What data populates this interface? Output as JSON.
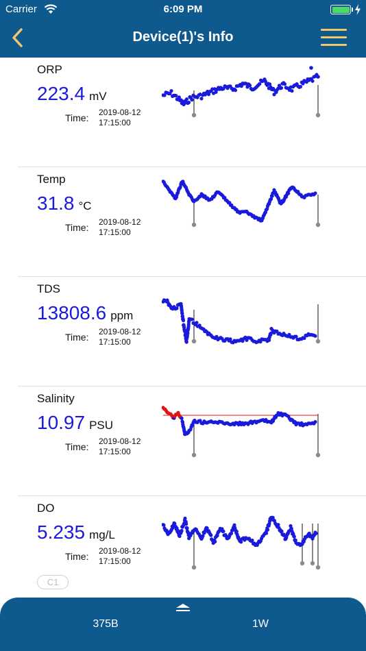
{
  "status": {
    "carrier": "Carrier",
    "time": "6:09 PM"
  },
  "nav": {
    "title": "Device(1)'s Info",
    "back_icon": "chevron-left-icon",
    "menu_icon": "hamburger-menu-icon"
  },
  "readings": [
    {
      "label": "ORP",
      "value": "223.4",
      "unit": "mV",
      "time_label": "Time:",
      "date": "2019-08-12",
      "clock": "17:15:00"
    },
    {
      "label": "Temp",
      "value": "31.8",
      "unit": "°C",
      "time_label": "Time:",
      "date": "2019-08-12",
      "clock": "17:15:00"
    },
    {
      "label": "TDS",
      "value": "13808.6",
      "unit": "ppm",
      "time_label": "Time:",
      "date": "2019-08-12",
      "clock": "17:15:00"
    },
    {
      "label": "Salinity",
      "value": "10.97",
      "unit": "PSU",
      "time_label": "Time:",
      "date": "2019-08-12",
      "clock": "17:15:00"
    },
    {
      "label": "DO",
      "value": "5.235",
      "unit": "mg/L",
      "time_label": "Time:",
      "date": "2019-08-12",
      "clock": "17:15:00"
    }
  ],
  "badge": "C1",
  "bottom": {
    "left_label": "375B",
    "right_label": "1W"
  },
  "colors": {
    "bar": "#0e5a8e",
    "series": "#1a1adb",
    "alarm": "#e01414",
    "accent": "#f2c66b"
  }
}
